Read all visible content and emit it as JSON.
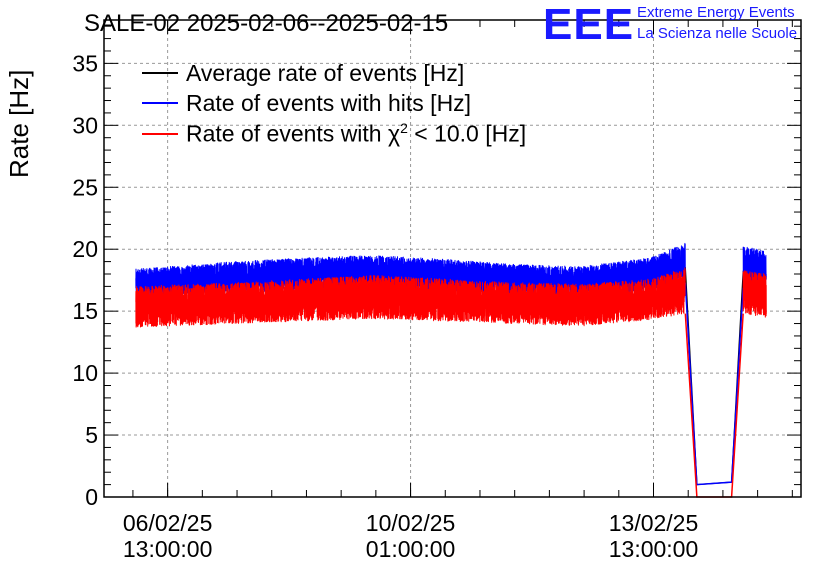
{
  "header": {
    "title": "SALE-02 2025-02-06--2025-02-15",
    "logo_text": "EEE",
    "logo_line1": "Extreme Energy Events",
    "logo_line2": "La Scienza nelle Scuole"
  },
  "colors": {
    "average": "#000000",
    "hits": "#0000ff",
    "chi2": "#ff0000",
    "logo": "#1a1aff"
  },
  "chart_data": {
    "type": "line",
    "title": "SALE-02 2025-02-06--2025-02-15",
    "xlabel": "",
    "ylabel": "Rate [Hz]",
    "ylim": [
      0,
      38.5
    ],
    "yticks": [
      0,
      5,
      10,
      15,
      20,
      25,
      30,
      35
    ],
    "xlim": [
      "2025-02-05 15:00",
      "2025-02-15 16:00"
    ],
    "xticks": [
      {
        "x": "2025-02-06 13:00",
        "label_line1": "06/02/25",
        "label_line2": "13:00:00"
      },
      {
        "x": "2025-02-10 01:00",
        "label_line1": "10/02/25",
        "label_line2": "01:00:00"
      },
      {
        "x": "2025-02-13 13:00",
        "label_line1": "13/02/25",
        "label_line2": "13:00:00"
      }
    ],
    "grid": true,
    "legend_position": "top-left",
    "series": [
      {
        "name": "Average rate of events [Hz]",
        "color": "#000000",
        "points": [
          [
            "2025-02-06 02:00",
            17.0
          ],
          [
            "2025-02-07 12:00",
            17.5
          ],
          [
            "2025-02-08 12:00",
            17.6
          ],
          [
            "2025-02-09 12:00",
            17.8
          ],
          [
            "2025-02-10 12:00",
            17.6
          ],
          [
            "2025-02-11 12:00",
            17.4
          ],
          [
            "2025-02-12 12:00",
            17.2
          ],
          [
            "2025-02-13 12:00",
            17.8
          ],
          [
            "2025-02-14 00:00",
            18.5
          ],
          [
            "2025-02-14 04:00",
            1.0
          ],
          [
            "2025-02-14 16:00",
            1.2
          ],
          [
            "2025-02-14 20:00",
            18.2
          ],
          [
            "2025-02-15 04:00",
            18.0
          ]
        ]
      },
      {
        "name": "Rate of events with hits [Hz]",
        "color": "#0000ff",
        "band": [
          [
            "2025-02-06 02:00",
            16.2,
            18.4
          ],
          [
            "2025-02-07 12:00",
            16.5,
            19.0
          ],
          [
            "2025-02-08 12:00",
            16.6,
            19.3
          ],
          [
            "2025-02-09 12:00",
            16.7,
            19.5
          ],
          [
            "2025-02-10 12:00",
            16.6,
            19.2
          ],
          [
            "2025-02-11 12:00",
            16.4,
            18.8
          ],
          [
            "2025-02-12 12:00",
            16.2,
            18.6
          ],
          [
            "2025-02-13 12:00",
            16.7,
            19.3
          ],
          [
            "2025-02-14 00:00",
            17.3,
            20.5
          ],
          [
            "2025-02-14 20:00",
            16.9,
            20.2
          ],
          [
            "2025-02-15 04:00",
            16.8,
            19.9
          ]
        ],
        "gap": [
          [
            "2025-02-14 04:00",
            1.0
          ],
          [
            "2025-02-14 16:00",
            1.2
          ]
        ]
      },
      {
        "name": "Rate of events with χ² < 10.0 [Hz]",
        "color": "#ff0000",
        "band": [
          [
            "2025-02-06 02:00",
            13.7,
            17.0
          ],
          [
            "2025-02-07 12:00",
            14.0,
            17.3
          ],
          [
            "2025-02-08 12:00",
            14.2,
            17.6
          ],
          [
            "2025-02-09 12:00",
            14.4,
            17.9
          ],
          [
            "2025-02-10 12:00",
            14.2,
            17.6
          ],
          [
            "2025-02-11 12:00",
            14.0,
            17.3
          ],
          [
            "2025-02-12 12:00",
            13.8,
            17.2
          ],
          [
            "2025-02-13 12:00",
            14.3,
            17.6
          ],
          [
            "2025-02-14 00:00",
            14.8,
            18.5
          ],
          [
            "2025-02-14 20:00",
            14.8,
            18.3
          ],
          [
            "2025-02-15 04:00",
            14.5,
            18.0
          ]
        ],
        "gap": [
          [
            "2025-02-14 04:00",
            0.0
          ],
          [
            "2025-02-14 16:00",
            0.0
          ]
        ]
      }
    ],
    "legend": [
      {
        "label_prefix": "Average rate of events [Hz]",
        "color": "#000000"
      },
      {
        "label_prefix": "Rate of events with hits [Hz]",
        "color": "#0000ff"
      },
      {
        "label_prefix": "Rate of events with ",
        "symbol": "χ",
        "superscript": "2",
        "label_suffix": " < 10.0 [Hz]",
        "color": "#ff0000"
      }
    ]
  }
}
